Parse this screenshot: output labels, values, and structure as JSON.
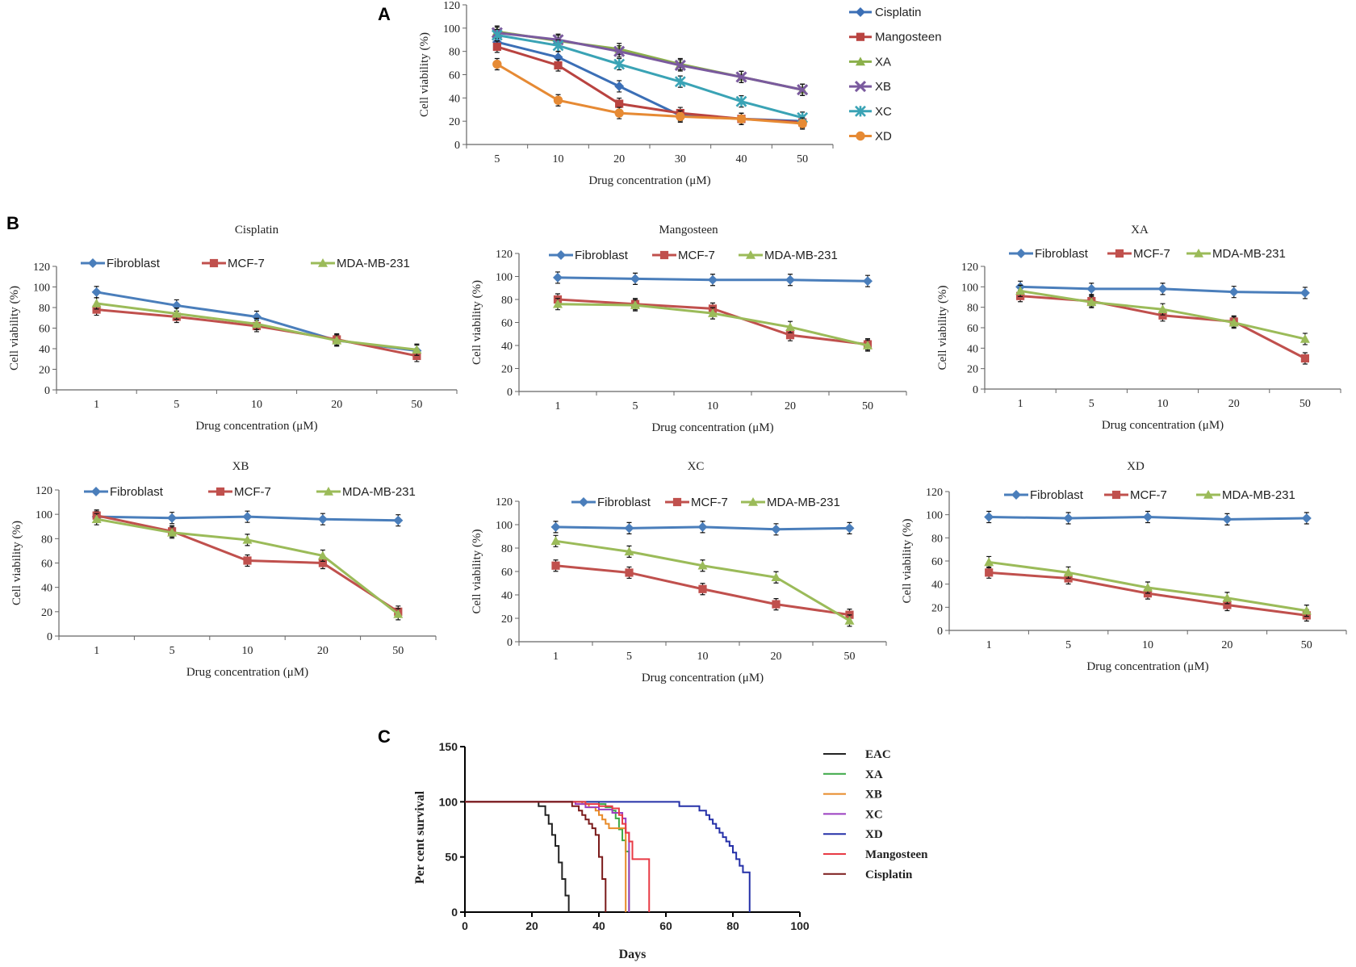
{
  "panel_labels": [
    "A",
    "B",
    "C"
  ],
  "chart_data": [
    {
      "panel": "A",
      "type": "line",
      "title": "",
      "xlabel": "Drug concentration (μM)",
      "ylabel": "Cell viability (%)",
      "categories": [
        "5",
        "10",
        "20",
        "30",
        "40",
        "50"
      ],
      "ylim": [
        0,
        120
      ],
      "yticks": [
        0,
        20,
        40,
        60,
        80,
        100,
        120
      ],
      "error_bars": true,
      "legend_position": "right",
      "series": [
        {
          "name": "Cisplatin",
          "color": "#3b6fb6",
          "marker": "diamond",
          "values": [
            88,
            75,
            50,
            25,
            22,
            20
          ]
        },
        {
          "name": "Mangosteen",
          "color": "#b94340",
          "marker": "square",
          "values": [
            84,
            68,
            35,
            27,
            22,
            19
          ]
        },
        {
          "name": "XA",
          "color": "#8bb04b",
          "marker": "triangle",
          "values": [
            97,
            89,
            82,
            69,
            58,
            47
          ]
        },
        {
          "name": "XB",
          "color": "#7a5a9e",
          "marker": "x",
          "values": [
            96,
            90,
            80,
            68,
            58,
            47
          ]
        },
        {
          "name": "XC",
          "color": "#3aa3b5",
          "marker": "star",
          "values": [
            94,
            85,
            69,
            54,
            37,
            23
          ]
        },
        {
          "name": "XD",
          "color": "#e68a34",
          "marker": "circle",
          "values": [
            69,
            38,
            27,
            24,
            22,
            18
          ]
        }
      ]
    },
    {
      "panel": "B",
      "type": "line",
      "title": "Cisplatin",
      "xlabel": "Drug concentration (μM)",
      "ylabel": "Cell  viability (%)",
      "categories": [
        "1",
        "5",
        "10",
        "20",
        "50"
      ],
      "ylim": [
        0,
        120
      ],
      "yticks": [
        0,
        20,
        40,
        60,
        80,
        100,
        120
      ],
      "legend_position": "top",
      "series": [
        {
          "name": "Fibroblast",
          "color": "#4a7ebb",
          "marker": "diamond",
          "values": [
            95,
            82,
            71,
            48,
            38
          ]
        },
        {
          "name": "MCF-7",
          "color": "#c0504d",
          "marker": "square",
          "values": [
            78,
            71,
            62,
            49,
            33
          ]
        },
        {
          "name": "MDA-MB-231",
          "color": "#9bbb59",
          "marker": "triangle",
          "values": [
            84,
            74,
            64,
            48,
            39
          ]
        }
      ]
    },
    {
      "panel": "B",
      "type": "line",
      "title": "Mangosteen",
      "xlabel": "Drug concentration (μM)",
      "ylabel": "Cell viability (%)",
      "categories": [
        "1",
        "5",
        "10",
        "20",
        "50"
      ],
      "ylim": [
        0,
        120
      ],
      "yticks": [
        0,
        20,
        40,
        60,
        80,
        100,
        120
      ],
      "legend_position": "top",
      "series": [
        {
          "name": "Fibroblast",
          "color": "#4a7ebb",
          "marker": "diamond",
          "values": [
            99,
            98,
            97,
            97,
            96
          ]
        },
        {
          "name": "MCF-7",
          "color": "#c0504d",
          "marker": "square",
          "values": [
            80,
            76,
            72,
            49,
            41
          ]
        },
        {
          "name": "MDA-MB-231",
          "color": "#9bbb59",
          "marker": "triangle",
          "values": [
            76,
            75,
            68,
            56,
            40
          ]
        }
      ]
    },
    {
      "panel": "B",
      "type": "line",
      "title": "XA",
      "xlabel": "Drug concentration (μM)",
      "ylabel": "Cell viability (%)",
      "categories": [
        "1",
        "5",
        "10",
        "20",
        "50"
      ],
      "ylim": [
        0,
        120
      ],
      "yticks": [
        0,
        20,
        40,
        60,
        80,
        100,
        120
      ],
      "legend_position": "top",
      "series": [
        {
          "name": "Fibroblast",
          "color": "#4a7ebb",
          "marker": "diamond",
          "values": [
            100,
            98,
            98,
            95,
            94
          ]
        },
        {
          "name": "MCF-7",
          "color": "#c0504d",
          "marker": "square",
          "values": [
            91,
            86,
            72,
            66,
            30
          ]
        },
        {
          "name": "MDA-MB-231",
          "color": "#9bbb59",
          "marker": "triangle",
          "values": [
            96,
            85,
            78,
            65,
            49
          ]
        }
      ]
    },
    {
      "panel": "B",
      "type": "line",
      "title": "XB",
      "xlabel": "Drug concentration (μM)",
      "ylabel": "Cell viability (%)",
      "categories": [
        "1",
        "5",
        "10",
        "20",
        "50"
      ],
      "ylim": [
        0,
        120
      ],
      "yticks": [
        0,
        20,
        40,
        60,
        80,
        100,
        120
      ],
      "legend_position": "top",
      "series": [
        {
          "name": "Fibroblast",
          "color": "#4a7ebb",
          "marker": "diamond",
          "values": [
            98,
            97,
            98,
            96,
            95
          ]
        },
        {
          "name": "MCF-7",
          "color": "#c0504d",
          "marker": "square",
          "values": [
            99,
            86,
            62,
            60,
            20
          ]
        },
        {
          "name": "MDA-MB-231",
          "color": "#9bbb59",
          "marker": "triangle",
          "values": [
            96,
            85,
            79,
            66,
            18
          ]
        }
      ]
    },
    {
      "panel": "B",
      "type": "line",
      "title": "XC",
      "xlabel": "Drug concentration (μM)",
      "ylabel": "Cell viability (%)",
      "categories": [
        "1",
        "5",
        "10",
        "20",
        "50"
      ],
      "ylim": [
        0,
        120
      ],
      "yticks": [
        0,
        20,
        40,
        60,
        80,
        100,
        120
      ],
      "legend_position": "top",
      "series": [
        {
          "name": "Fibroblast",
          "color": "#4a7ebb",
          "marker": "diamond",
          "values": [
            98,
            97,
            98,
            96,
            97
          ]
        },
        {
          "name": "MCF-7",
          "color": "#c0504d",
          "marker": "square",
          "values": [
            65,
            59,
            45,
            32,
            23
          ]
        },
        {
          "name": "MDA-MB-231",
          "color": "#9bbb59",
          "marker": "triangle",
          "values": [
            86,
            77,
            65,
            55,
            18
          ]
        }
      ]
    },
    {
      "panel": "B",
      "type": "line",
      "title": "XD",
      "xlabel": "Drug concentration (μM)",
      "ylabel": "Cell viability (%)",
      "categories": [
        "1",
        "5",
        "10",
        "20",
        "50"
      ],
      "ylim": [
        0,
        120
      ],
      "yticks": [
        0,
        20,
        40,
        60,
        80,
        100,
        120
      ],
      "legend_position": "top",
      "series": [
        {
          "name": "Fibroblast",
          "color": "#4a7ebb",
          "marker": "diamond",
          "values": [
            98,
            97,
            98,
            96,
            97
          ]
        },
        {
          "name": "MCF-7",
          "color": "#c0504d",
          "marker": "square",
          "values": [
            50,
            45,
            32,
            22,
            13
          ]
        },
        {
          "name": "MDA-MB-231",
          "color": "#9bbb59",
          "marker": "triangle",
          "values": [
            59,
            50,
            37,
            28,
            17
          ]
        }
      ]
    },
    {
      "panel": "C",
      "type": "line",
      "subtype": "step (Kaplan-Meier survival)",
      "title": "",
      "xlabel": "Days",
      "ylabel": "Per cent survival",
      "xlim": [
        0,
        100
      ],
      "ylim": [
        0,
        150
      ],
      "xticks": [
        0,
        20,
        40,
        60,
        80,
        100
      ],
      "yticks": [
        0,
        50,
        100,
        150
      ],
      "legend_position": "right",
      "series": [
        {
          "name": "EAC",
          "color": "#222222",
          "x": [
            0,
            22,
            24,
            25,
            26,
            27,
            28,
            29,
            30,
            31
          ],
          "y": [
            100,
            96,
            88,
            80,
            70,
            60,
            45,
            30,
            15,
            0
          ]
        },
        {
          "name": "XA",
          "color": "#3aa845",
          "x": [
            0,
            40,
            42,
            44,
            45,
            46,
            47,
            48,
            49
          ],
          "y": [
            100,
            98,
            95,
            92,
            85,
            75,
            65,
            55,
            0
          ]
        },
        {
          "name": "XB",
          "color": "#e88a28",
          "x": [
            0,
            35,
            37,
            39,
            40,
            41,
            42,
            43,
            45,
            47,
            48
          ],
          "y": [
            100,
            98,
            95,
            92,
            88,
            84,
            80,
            76,
            76,
            76,
            0
          ]
        },
        {
          "name": "XC",
          "color": "#9a3fc0",
          "x": [
            0,
            33,
            36,
            40,
            44,
            47,
            48,
            49
          ],
          "y": [
            100,
            98,
            95,
            93,
            90,
            85,
            72,
            0
          ]
        },
        {
          "name": "XD",
          "color": "#2530a8",
          "x": [
            0,
            64,
            70,
            72,
            73,
            74,
            75,
            76,
            77,
            78,
            79,
            80,
            81,
            82,
            83,
            85
          ],
          "y": [
            100,
            96,
            92,
            88,
            84,
            80,
            76,
            72,
            68,
            64,
            60,
            54,
            48,
            42,
            36,
            0
          ]
        },
        {
          "name": "Mangosteen",
          "color": "#e83a45",
          "x": [
            0,
            36,
            40,
            44,
            46,
            47,
            48,
            49,
            50,
            52,
            55
          ],
          "y": [
            100,
            98,
            96,
            94,
            88,
            80,
            72,
            64,
            48,
            48,
            0
          ]
        },
        {
          "name": "Cisplatin",
          "color": "#7a1a1a",
          "x": [
            0,
            32,
            34,
            35,
            36,
            37,
            38,
            39,
            40,
            41,
            42
          ],
          "y": [
            100,
            96,
            92,
            88,
            84,
            80,
            76,
            70,
            50,
            30,
            0
          ]
        }
      ]
    }
  ]
}
